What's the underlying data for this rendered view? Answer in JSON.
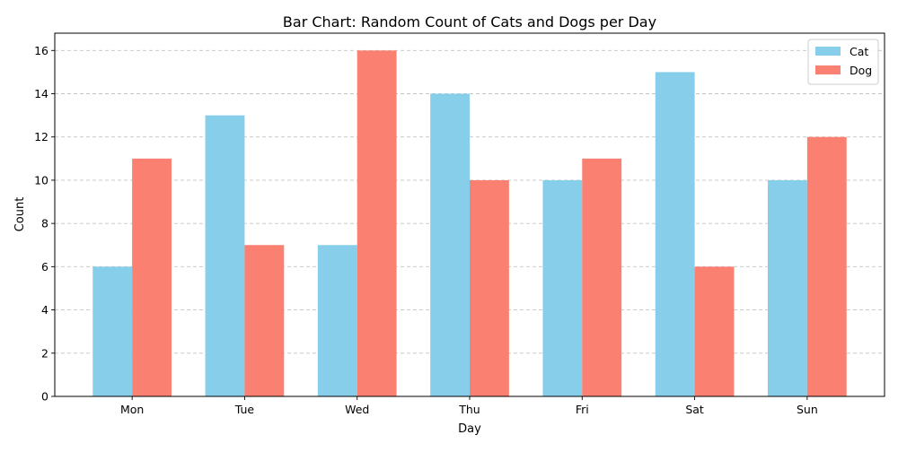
{
  "chart_data": {
    "type": "bar",
    "title": "Bar Chart: Random Count of Cats and Dogs per Day",
    "xlabel": "Day",
    "ylabel": "Count",
    "categories": [
      "Mon",
      "Tue",
      "Wed",
      "Thu",
      "Fri",
      "Sat",
      "Sun"
    ],
    "series": [
      {
        "name": "Cat",
        "color": "#87ceeb",
        "values": [
          6,
          13,
          7,
          14,
          10,
          15,
          10
        ]
      },
      {
        "name": "Dog",
        "color": "#fa8072",
        "values": [
          11,
          7,
          16,
          10,
          11,
          6,
          12
        ]
      }
    ],
    "ylim": [
      0,
      16.8
    ],
    "yticks": [
      0,
      2,
      4,
      6,
      8,
      10,
      12,
      14,
      16
    ],
    "grid": "y-dashed",
    "legend_position": "top-right"
  }
}
